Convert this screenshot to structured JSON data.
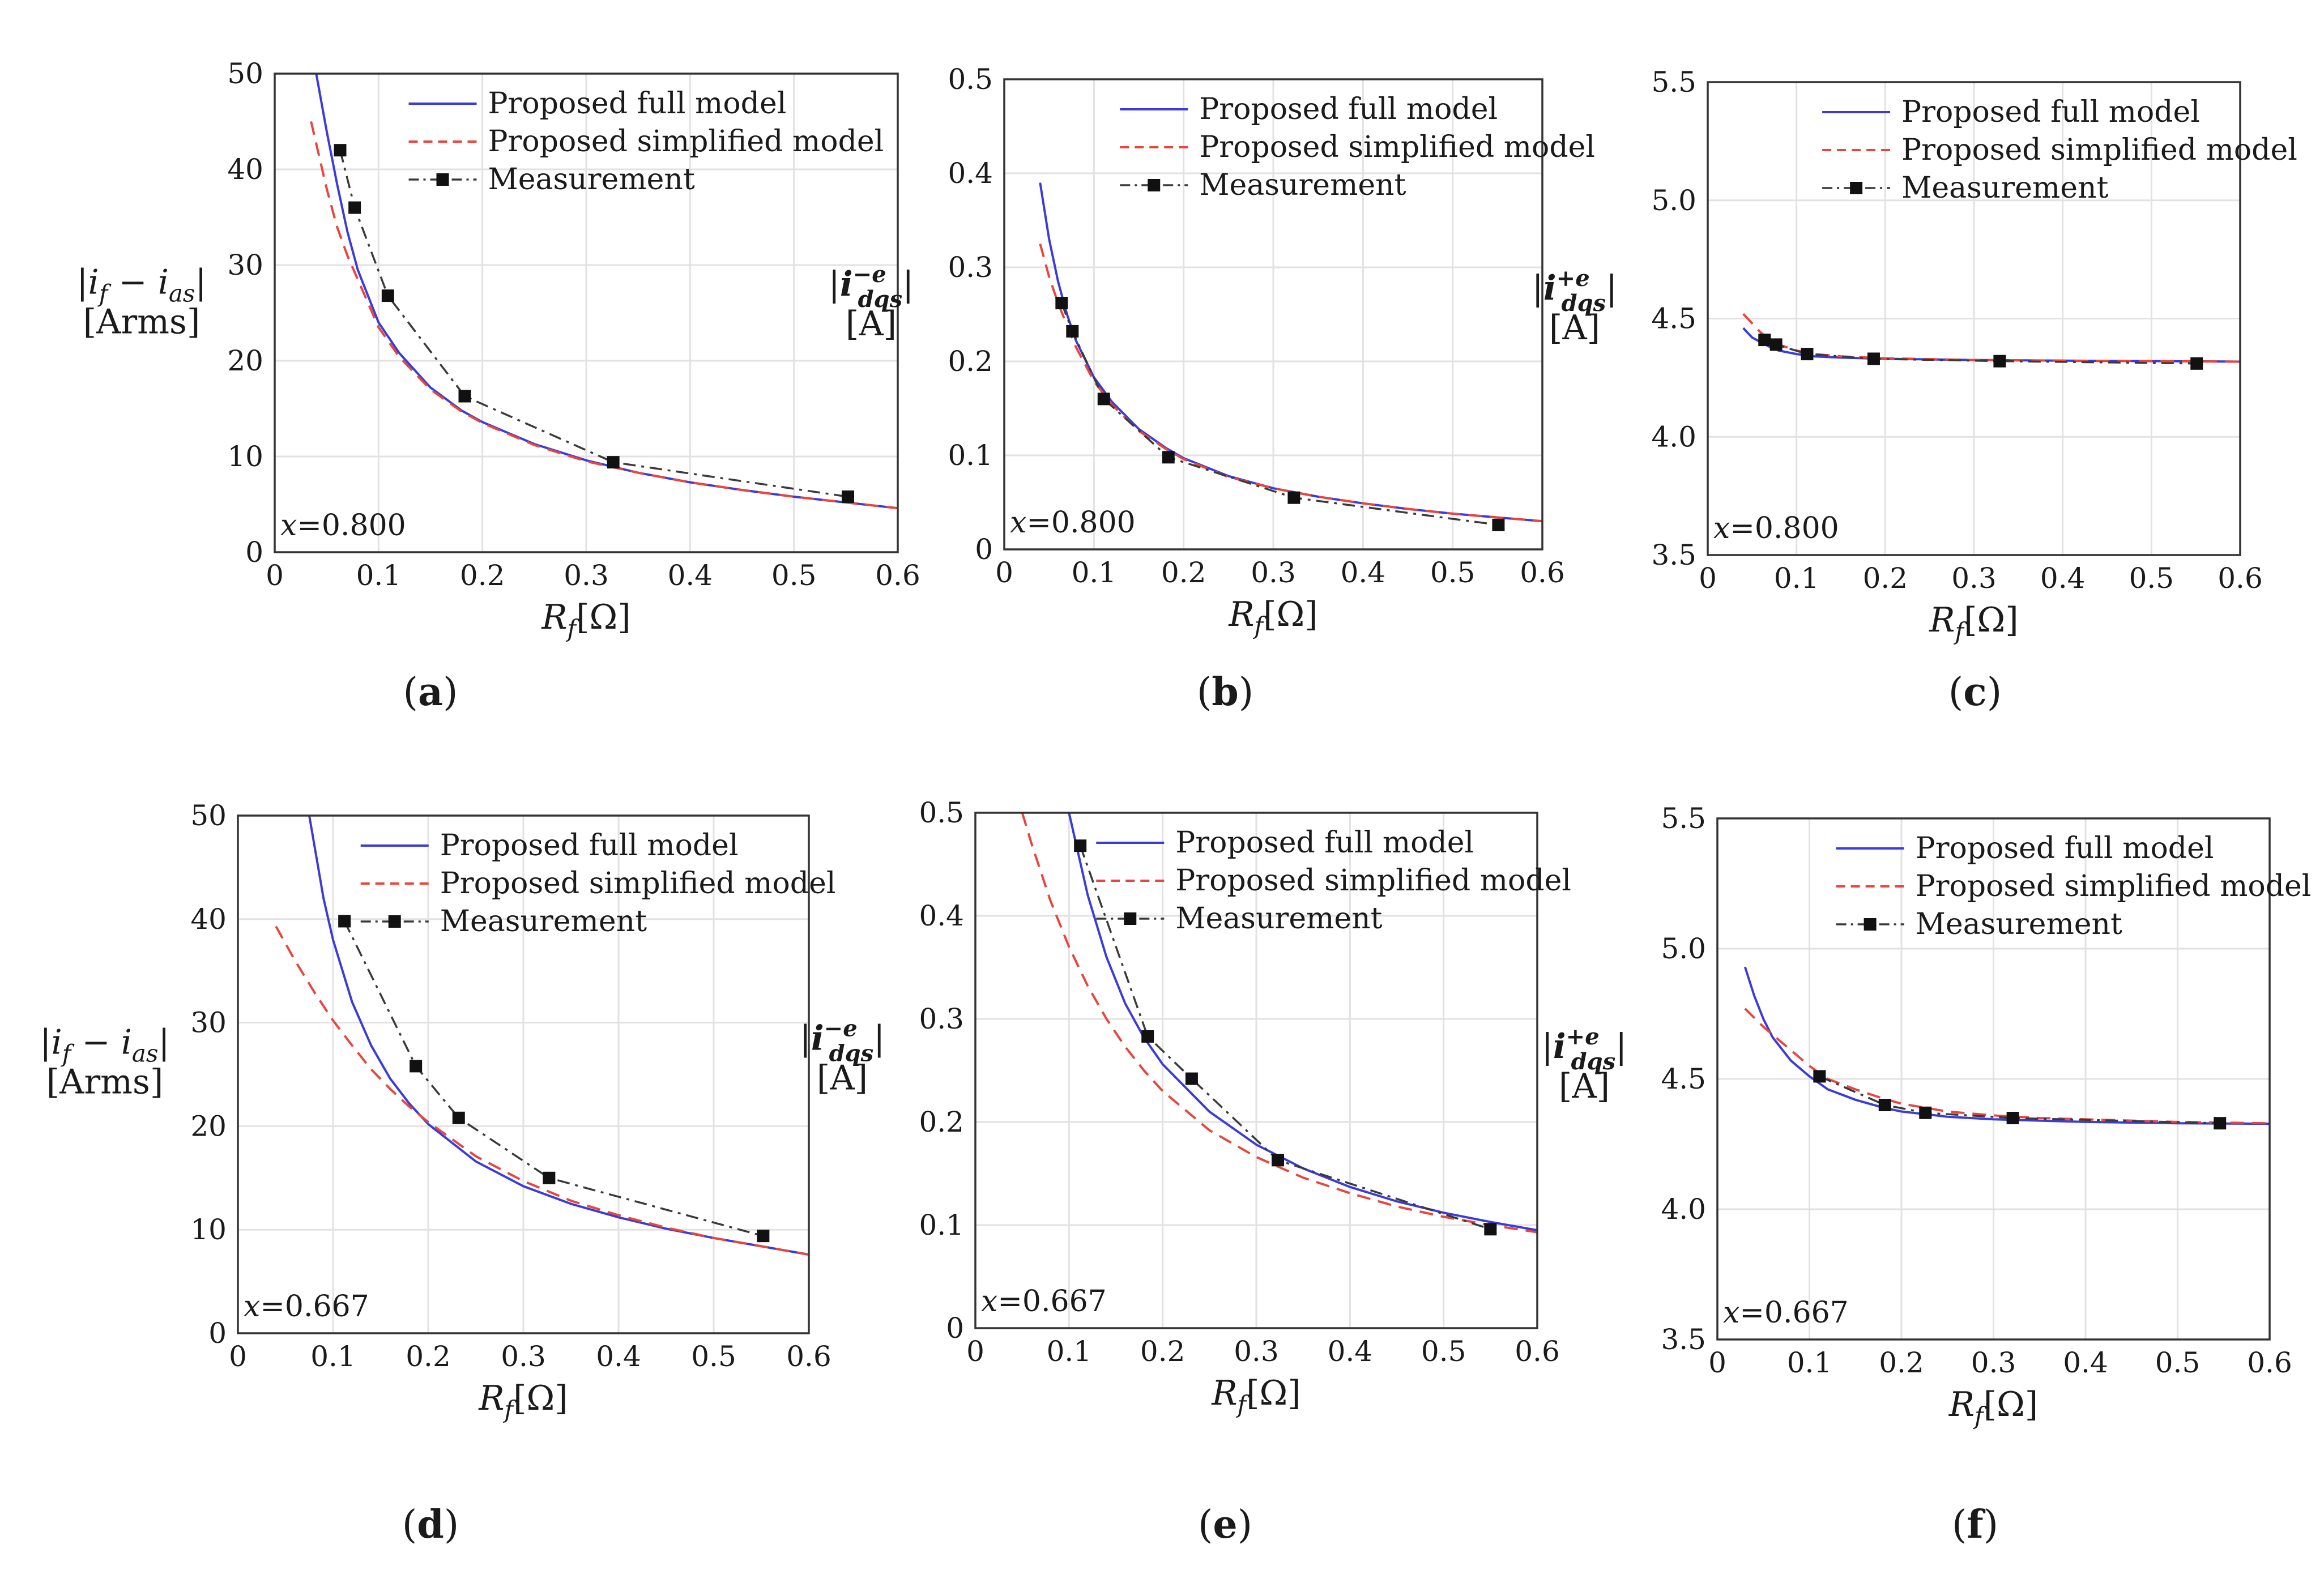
{
  "chart_data": [
    {
      "type": "line",
      "panel": "a",
      "panel_label": "a",
      "ylabel": {
        "abs_open": "|",
        "var": "i",
        "sub1": "f",
        "minus": " − ",
        "var2": "i",
        "sub2": "as",
        "abs_close": "|",
        "unit": "[Arms]"
      },
      "xlabel": {
        "var": "R",
        "sub": "f",
        "unit": "[Ω]"
      },
      "xlim": [
        0,
        0.6
      ],
      "ylim": [
        0,
        50
      ],
      "xticks": [
        0,
        0.1,
        0.2,
        0.3,
        0.4,
        0.5,
        0.6
      ],
      "xtick_labels": [
        "0",
        "0.1",
        "0.2",
        "0.3",
        "0.4",
        "0.5",
        "0.6"
      ],
      "yticks": [
        0,
        10,
        20,
        30,
        40,
        50
      ],
      "ytick_labels": [
        "0",
        "10",
        "20",
        "30",
        "40",
        "50"
      ],
      "annotation": {
        "var": "x",
        "value": "=0.800"
      },
      "legend": {
        "position": "top-right",
        "entries": [
          "Proposed full model",
          "Proposed simplified model",
          "Measurement"
        ]
      },
      "series": [
        {
          "name": "Proposed full model",
          "color": "#3b3bdc",
          "style": "solid",
          "x": [
            0.04,
            0.05,
            0.06,
            0.07,
            0.08,
            0.1,
            0.12,
            0.15,
            0.18,
            0.2,
            0.25,
            0.3,
            0.35,
            0.4,
            0.45,
            0.5,
            0.55,
            0.6
          ],
          "y": [
            50,
            44,
            38.5,
            33.5,
            29.5,
            24,
            20.8,
            17.2,
            14.8,
            13.6,
            11.3,
            9.6,
            8.3,
            7.3,
            6.5,
            5.8,
            5.2,
            4.6
          ]
        },
        {
          "name": "Proposed simplified model",
          "color": "#e8453c",
          "style": "dashed",
          "x": [
            0.035,
            0.05,
            0.06,
            0.07,
            0.08,
            0.1,
            0.12,
            0.15,
            0.18,
            0.2,
            0.25,
            0.3,
            0.35,
            0.4,
            0.45,
            0.5,
            0.55,
            0.6
          ],
          "y": [
            45,
            38,
            34,
            31,
            28.5,
            23.5,
            20.4,
            17,
            14.7,
            13.5,
            11.2,
            9.5,
            8.3,
            7.3,
            6.5,
            5.8,
            5.2,
            4.6
          ]
        },
        {
          "name": "Measurement",
          "color": "#3a3a3a",
          "style": "dashdot",
          "marker": "square",
          "x": [
            0.063,
            0.077,
            0.109,
            0.183,
            0.326,
            0.552
          ],
          "y": [
            42,
            36,
            26.8,
            16.3,
            9.4,
            5.8
          ]
        }
      ]
    },
    {
      "type": "line",
      "panel": "b",
      "panel_label": "b",
      "ylabel": {
        "abs_open": "|",
        "var": "i",
        "sup": "−e",
        "sub": "dqs",
        "abs_close": "|",
        "unit": "[A]"
      },
      "xlabel": {
        "var": "R",
        "sub": "f",
        "unit": "[Ω]"
      },
      "xlim": [
        0,
        0.6
      ],
      "ylim": [
        0,
        0.5
      ],
      "xticks": [
        0,
        0.1,
        0.2,
        0.3,
        0.4,
        0.5,
        0.6
      ],
      "xtick_labels": [
        "0",
        "0.1",
        "0.2",
        "0.3",
        "0.4",
        "0.5",
        "0.6"
      ],
      "yticks": [
        0,
        0.1,
        0.2,
        0.3,
        0.4,
        0.5
      ],
      "ytick_labels": [
        "0",
        "0.1",
        "0.2",
        "0.3",
        "0.4",
        "0.5"
      ],
      "annotation": {
        "var": "x",
        "value": "=0.800"
      },
      "legend": {
        "position": "top-right",
        "entries": [
          "Proposed full model",
          "Proposed simplified model",
          "Measurement"
        ]
      },
      "series": [
        {
          "name": "Proposed full model",
          "color": "#3b3bdc",
          "style": "solid",
          "x": [
            0.04,
            0.05,
            0.06,
            0.07,
            0.08,
            0.1,
            0.12,
            0.15,
            0.18,
            0.2,
            0.25,
            0.3,
            0.35,
            0.4,
            0.45,
            0.5,
            0.55,
            0.6
          ],
          "y": [
            0.39,
            0.33,
            0.285,
            0.25,
            0.222,
            0.183,
            0.157,
            0.128,
            0.108,
            0.097,
            0.078,
            0.065,
            0.056,
            0.049,
            0.043,
            0.038,
            0.034,
            0.03
          ]
        },
        {
          "name": "Proposed simplified model",
          "color": "#e8453c",
          "style": "dashed",
          "x": [
            0.04,
            0.05,
            0.06,
            0.07,
            0.08,
            0.1,
            0.12,
            0.15,
            0.18,
            0.2,
            0.25,
            0.3,
            0.35,
            0.4,
            0.45,
            0.5,
            0.55,
            0.6
          ],
          "y": [
            0.325,
            0.29,
            0.262,
            0.238,
            0.215,
            0.179,
            0.154,
            0.126,
            0.107,
            0.096,
            0.077,
            0.065,
            0.056,
            0.049,
            0.043,
            0.038,
            0.034,
            0.03
          ]
        },
        {
          "name": "Measurement",
          "color": "#3a3a3a",
          "style": "dashdot",
          "marker": "square",
          "x": [
            0.064,
            0.076,
            0.111,
            0.183,
            0.323,
            0.551
          ],
          "y": [
            0.262,
            0.232,
            0.16,
            0.098,
            0.055,
            0.026
          ]
        }
      ]
    },
    {
      "type": "line",
      "panel": "c",
      "panel_label": "c",
      "ylabel": {
        "abs_open": "|",
        "var": "i",
        "sup": "+e",
        "sub": "dqs",
        "abs_close": "|",
        "unit": "[A]"
      },
      "xlabel": {
        "var": "R",
        "sub": "f",
        "unit": "[Ω]"
      },
      "xlim": [
        0,
        0.6
      ],
      "ylim": [
        3.5,
        5.5
      ],
      "xticks": [
        0,
        0.1,
        0.2,
        0.3,
        0.4,
        0.5,
        0.6
      ],
      "xtick_labels": [
        "0",
        "0.1",
        "0.2",
        "0.3",
        "0.4",
        "0.5",
        "0.6"
      ],
      "yticks": [
        3.5,
        4.0,
        4.5,
        5.0,
        5.5
      ],
      "ytick_labels": [
        "3.5",
        "4.0",
        "4.5",
        "5.0",
        "5.5"
      ],
      "annotation": {
        "var": "x",
        "value": "=0.800"
      },
      "legend": {
        "position": "top-right",
        "entries": [
          "Proposed full model",
          "Proposed simplified model",
          "Measurement"
        ]
      },
      "series": [
        {
          "name": "Proposed full model",
          "color": "#3b3bdc",
          "style": "solid",
          "x": [
            0.04,
            0.05,
            0.06,
            0.07,
            0.08,
            0.1,
            0.12,
            0.15,
            0.2,
            0.3,
            0.4,
            0.5,
            0.6
          ],
          "y": [
            4.46,
            4.42,
            4.4,
            4.38,
            4.365,
            4.35,
            4.34,
            4.335,
            4.33,
            4.325,
            4.322,
            4.32,
            4.318
          ]
        },
        {
          "name": "Proposed simplified model",
          "color": "#e8453c",
          "style": "dashed",
          "x": [
            0.04,
            0.05,
            0.06,
            0.07,
            0.08,
            0.1,
            0.12,
            0.15,
            0.2,
            0.3,
            0.4,
            0.5,
            0.6
          ],
          "y": [
            4.52,
            4.48,
            4.44,
            4.41,
            4.39,
            4.365,
            4.35,
            4.34,
            4.332,
            4.325,
            4.322,
            4.32,
            4.318
          ]
        },
        {
          "name": "Measurement",
          "color": "#3a3a3a",
          "style": "dashdot",
          "marker": "square",
          "x": [
            0.064,
            0.077,
            0.112,
            0.187,
            0.329,
            0.551
          ],
          "y": [
            4.41,
            4.39,
            4.35,
            4.33,
            4.32,
            4.31
          ]
        }
      ]
    },
    {
      "type": "line",
      "panel": "d",
      "panel_label": "d",
      "ylabel": {
        "abs_open": "|",
        "var": "i",
        "sub1": "f",
        "minus": " − ",
        "var2": "i",
        "sub2": "as",
        "abs_close": "|",
        "unit": "[Arms]"
      },
      "xlabel": {
        "var": "R",
        "sub": "f",
        "unit": "[Ω]"
      },
      "xlim": [
        0,
        0.6
      ],
      "ylim": [
        0,
        50
      ],
      "xticks": [
        0,
        0.1,
        0.2,
        0.3,
        0.4,
        0.5,
        0.6
      ],
      "xtick_labels": [
        "0",
        "0.1",
        "0.2",
        "0.3",
        "0.4",
        "0.5",
        "0.6"
      ],
      "yticks": [
        0,
        10,
        20,
        30,
        40,
        50
      ],
      "ytick_labels": [
        "0",
        "10",
        "20",
        "30",
        "40",
        "50"
      ],
      "annotation": {
        "var": "x",
        "value": "=0.667"
      },
      "legend": {
        "position": "top-right",
        "entries": [
          "Proposed full model",
          "Proposed simplified model",
          "Measurement"
        ]
      },
      "series": [
        {
          "name": "Proposed full model",
          "color": "#3b3bdc",
          "style": "solid",
          "x": [
            0.075,
            0.09,
            0.1,
            0.12,
            0.14,
            0.16,
            0.18,
            0.2,
            0.25,
            0.3,
            0.35,
            0.4,
            0.45,
            0.5,
            0.55,
            0.6
          ],
          "y": [
            50,
            42,
            38,
            32,
            27.8,
            24.6,
            22.2,
            20.2,
            16.6,
            14.2,
            12.5,
            11.2,
            10.1,
            9.2,
            8.4,
            7.6
          ]
        },
        {
          "name": "Proposed simplified model",
          "color": "#e8453c",
          "style": "dashed",
          "x": [
            0.04,
            0.06,
            0.08,
            0.1,
            0.12,
            0.14,
            0.16,
            0.18,
            0.2,
            0.25,
            0.3,
            0.35,
            0.4,
            0.45,
            0.5,
            0.55,
            0.6
          ],
          "y": [
            39.3,
            36,
            33,
            30.2,
            27.8,
            25.5,
            23.6,
            21.9,
            20.4,
            17.1,
            14.7,
            12.8,
            11.4,
            10.2,
            9.2,
            8.4,
            7.6
          ]
        },
        {
          "name": "Measurement",
          "color": "#3a3a3a",
          "style": "dashdot",
          "marker": "square",
          "x": [
            0.112,
            0.187,
            0.232,
            0.327,
            0.552
          ],
          "y": [
            39.8,
            25.8,
            20.8,
            15.0,
            9.4
          ]
        }
      ]
    },
    {
      "type": "line",
      "panel": "e",
      "panel_label": "e",
      "ylabel": {
        "abs_open": "|",
        "var": "i",
        "sup": "−e",
        "sub": "dqs",
        "abs_close": "|",
        "unit": "[A]"
      },
      "xlabel": {
        "var": "R",
        "sub": "f",
        "unit": "[Ω]"
      },
      "xlim": [
        0,
        0.6
      ],
      "ylim": [
        0,
        0.5
      ],
      "xticks": [
        0,
        0.1,
        0.2,
        0.3,
        0.4,
        0.5,
        0.6
      ],
      "xtick_labels": [
        "0",
        "0.1",
        "0.2",
        "0.3",
        "0.4",
        "0.5",
        "0.6"
      ],
      "yticks": [
        0,
        0.1,
        0.2,
        0.3,
        0.4,
        0.5
      ],
      "ytick_labels": [
        "0",
        "0.1",
        "0.2",
        "0.3",
        "0.4",
        "0.5"
      ],
      "annotation": {
        "var": "x",
        "value": "=0.667"
      },
      "legend": {
        "position": "top-right",
        "entries": [
          "Proposed full model",
          "Proposed simplified model",
          "Measurement"
        ]
      },
      "series": [
        {
          "name": "Proposed full model",
          "color": "#3b3bdc",
          "style": "solid",
          "x": [
            0.1,
            0.12,
            0.14,
            0.16,
            0.18,
            0.2,
            0.25,
            0.3,
            0.35,
            0.4,
            0.45,
            0.5,
            0.55,
            0.6
          ],
          "y": [
            0.5,
            0.42,
            0.36,
            0.315,
            0.282,
            0.256,
            0.21,
            0.178,
            0.155,
            0.137,
            0.123,
            0.112,
            0.103,
            0.095
          ]
        },
        {
          "name": "Proposed simplified model",
          "color": "#e8453c",
          "style": "dashed",
          "x": [
            0.05,
            0.06,
            0.08,
            0.1,
            0.12,
            0.14,
            0.16,
            0.18,
            0.2,
            0.25,
            0.3,
            0.35,
            0.4,
            0.45,
            0.5,
            0.55,
            0.6
          ],
          "y": [
            0.5,
            0.47,
            0.415,
            0.37,
            0.332,
            0.3,
            0.273,
            0.25,
            0.23,
            0.192,
            0.166,
            0.146,
            0.131,
            0.118,
            0.108,
            0.1,
            0.093
          ]
        },
        {
          "name": "Measurement",
          "color": "#3a3a3a",
          "style": "dashdot",
          "marker": "square",
          "x": [
            0.112,
            0.184,
            0.231,
            0.323,
            0.55
          ],
          "y": [
            0.468,
            0.283,
            0.242,
            0.163,
            0.096
          ]
        }
      ]
    },
    {
      "type": "line",
      "panel": "f",
      "panel_label": "f",
      "ylabel": {
        "abs_open": "|",
        "var": "i",
        "sup": "+e",
        "sub": "dqs",
        "abs_close": "|",
        "unit": "[A]"
      },
      "xlabel": {
        "var": "R",
        "sub": "f",
        "unit": "[Ω]"
      },
      "xlim": [
        0,
        0.6
      ],
      "ylim": [
        3.5,
        5.5
      ],
      "xticks": [
        0,
        0.1,
        0.2,
        0.3,
        0.4,
        0.5,
        0.6
      ],
      "xtick_labels": [
        "0",
        "0.1",
        "0.2",
        "0.3",
        "0.4",
        "0.5",
        "0.6"
      ],
      "yticks": [
        3.5,
        4.0,
        4.5,
        5.0,
        5.5
      ],
      "ytick_labels": [
        "3.5",
        "4.0",
        "4.5",
        "5.0",
        "5.5"
      ],
      "annotation": {
        "var": "x",
        "value": "=0.667"
      },
      "legend": {
        "position": "top-right",
        "entries": [
          "Proposed full model",
          "Proposed simplified model",
          "Measurement"
        ]
      },
      "series": [
        {
          "name": "Proposed full model",
          "color": "#3b3bdc",
          "style": "solid",
          "x": [
            0.03,
            0.04,
            0.05,
            0.06,
            0.08,
            0.1,
            0.12,
            0.15,
            0.18,
            0.2,
            0.25,
            0.3,
            0.35,
            0.4,
            0.5,
            0.6
          ],
          "y": [
            4.93,
            4.82,
            4.73,
            4.66,
            4.57,
            4.51,
            4.46,
            4.42,
            4.39,
            4.375,
            4.355,
            4.345,
            4.34,
            4.335,
            4.33,
            4.328
          ]
        },
        {
          "name": "Proposed simplified model",
          "color": "#e8453c",
          "style": "dashed",
          "x": [
            0.03,
            0.05,
            0.08,
            0.1,
            0.12,
            0.15,
            0.18,
            0.2,
            0.25,
            0.3,
            0.35,
            0.4,
            0.5,
            0.6
          ],
          "y": [
            4.77,
            4.7,
            4.61,
            4.55,
            4.5,
            4.46,
            4.425,
            4.405,
            4.375,
            4.36,
            4.35,
            4.345,
            4.335,
            4.33
          ]
        },
        {
          "name": "Measurement",
          "color": "#3a3a3a",
          "style": "dashdot",
          "marker": "square",
          "x": [
            0.111,
            0.182,
            0.226,
            0.321,
            0.546
          ],
          "y": [
            4.51,
            4.4,
            4.37,
            4.35,
            4.33
          ]
        }
      ]
    }
  ]
}
